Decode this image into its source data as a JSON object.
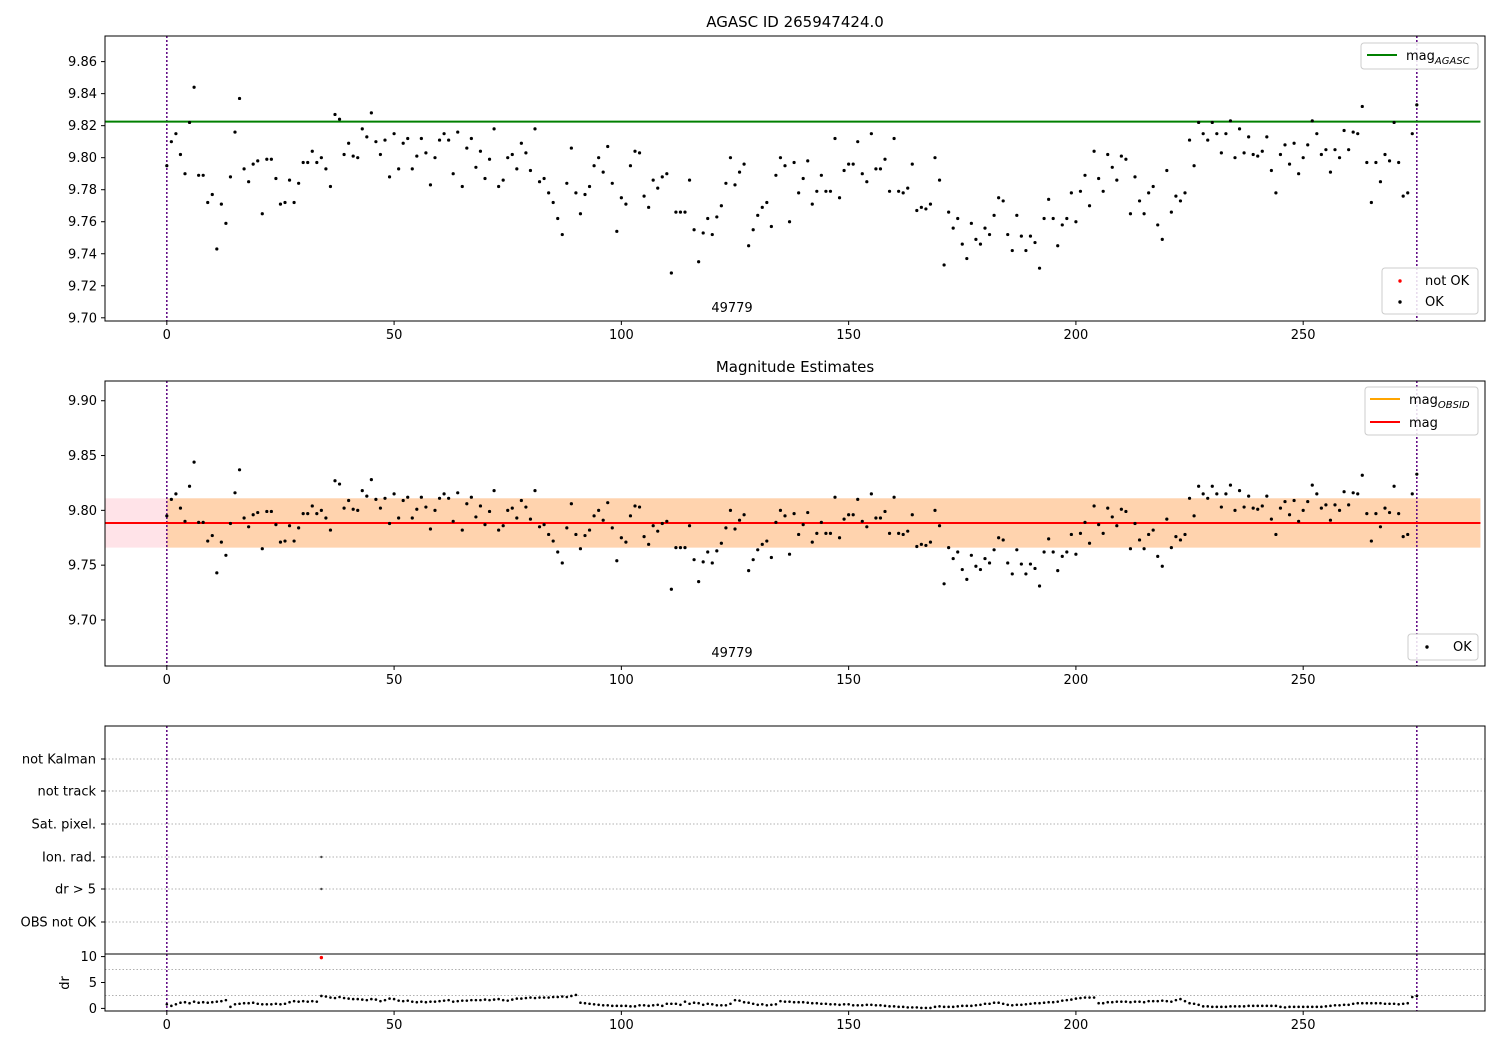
{
  "chart_data": [
    {
      "type": "scatter",
      "title": "AGASC ID 265947424.0",
      "ylim": [
        9.698,
        9.876
      ],
      "xlim": [
        -13.6,
        290
      ],
      "x_ticks": [
        0,
        50,
        100,
        150,
        200,
        250,
        300
      ],
      "y_ticks": [
        9.7,
        9.72,
        9.74,
        9.76,
        9.78,
        9.8,
        9.82,
        9.84,
        9.86
      ],
      "hline": {
        "label": "mag",
        "label_sub": "AGASC",
        "value": 9.8225,
        "color": "#008000",
        "x_range": [
          -13.6,
          289
        ]
      },
      "obs_lines": [
        0,
        275
      ],
      "annotation": {
        "text": "49779",
        "x": 137
      },
      "legends": [
        {
          "position": "top-right",
          "entries": [
            {
              "label": "mag",
              "label_sub": "AGASC",
              "kind": "line",
              "color": "#008000"
            }
          ]
        },
        {
          "position": "bottom-right",
          "entries": [
            {
              "label": "not OK",
              "kind": "point",
              "color": "#ff0000"
            },
            {
              "label": "OK",
              "kind": "point",
              "color": "#000000"
            }
          ]
        }
      ],
      "series": [
        {
          "name": "OK",
          "ref": "mags"
        }
      ]
    },
    {
      "type": "scatter",
      "title": "Magnitude Estimates",
      "ylim": [
        9.658,
        9.918
      ],
      "xlim": [
        -13.6,
        290
      ],
      "x_ticks": [
        0,
        50,
        100,
        150,
        200,
        250,
        300
      ],
      "y_ticks": [
        9.7,
        9.75,
        9.8,
        9.85,
        9.9
      ],
      "hline": {
        "label": "mag",
        "value": 9.7885,
        "color": "#ff0000",
        "x_range": [
          -13.6,
          289
        ]
      },
      "bands": [
        {
          "y": [
            9.766,
            9.811
          ],
          "x": [
            -13.6,
            289
          ],
          "color": "#ffc0cb",
          "opacity": 0.45
        },
        {
          "y": [
            9.766,
            9.811
          ],
          "x": [
            0,
            289
          ],
          "color": "#ffa500",
          "opacity": 0.25
        }
      ],
      "obs_lines": [
        0,
        275
      ],
      "annotation": {
        "text": "49779",
        "x": 137
      },
      "legends": [
        {
          "position": "top-right",
          "entries": [
            {
              "label": "mag",
              "label_sub": "OBSID",
              "kind": "line",
              "color": "#ffa500"
            },
            {
              "label": "mag",
              "kind": "line",
              "color": "#ff0000"
            }
          ]
        },
        {
          "position": "bottom-right",
          "entries": [
            {
              "label": "OK",
              "kind": "point",
              "color": "#000000"
            }
          ]
        }
      ],
      "series": [
        {
          "name": "OK",
          "ref": "mags"
        }
      ]
    },
    {
      "type": "scatter",
      "xlim": [
        -13.6,
        290
      ],
      "x_ticks": [
        0,
        50,
        100,
        150,
        200,
        250,
        300
      ],
      "flag_categories": [
        "not Kalman",
        "not track",
        "Sat. pixel.",
        "Ion. rad.",
        "dr > 5",
        "OBS not OK"
      ],
      "flag_points": [
        {
          "category": "Ion. rad.",
          "x": 34
        },
        {
          "category": "dr > 5",
          "x": 34
        }
      ],
      "obs_lines": [
        0,
        275
      ]
    },
    {
      "type": "scatter",
      "ylabel": "dr",
      "ylim": [
        -0.5,
        10.5
      ],
      "y_ticks": [
        0,
        5,
        10
      ],
      "xlim": [
        -13.6,
        290
      ],
      "x_ticks": [
        0,
        50,
        100,
        150,
        200,
        250,
        300
      ],
      "obs_lines": [
        0,
        275
      ],
      "flagged_points": [
        {
          "x": 34,
          "y": 9.8
        }
      ],
      "series": [
        {
          "name": "dr",
          "ref": "dr"
        }
      ]
    }
  ],
  "mags": [
    9.795,
    9.81,
    9.815,
    9.802,
    9.79,
    9.822,
    9.844,
    9.789,
    9.789,
    9.772,
    9.777,
    9.743,
    9.771,
    9.759,
    9.788,
    9.816,
    9.837,
    9.793,
    9.785,
    9.796,
    9.798,
    9.765,
    9.799,
    9.799,
    9.787,
    9.771,
    9.772,
    9.786,
    9.772,
    9.784,
    9.797,
    9.797,
    9.804,
    9.797,
    9.8,
    9.793,
    9.782,
    9.827,
    9.824,
    9.802,
    9.809,
    9.801,
    9.8,
    9.818,
    9.813,
    9.828,
    9.81,
    9.802,
    9.811,
    9.788,
    9.815,
    9.793,
    9.809,
    9.812,
    9.793,
    9.801,
    9.812,
    9.803,
    9.783,
    9.8,
    9.811,
    9.815,
    9.811,
    9.79,
    9.816,
    9.782,
    9.806,
    9.812,
    9.794,
    9.804,
    9.787,
    9.799,
    9.818,
    9.782,
    9.786,
    9.8,
    9.802,
    9.793,
    9.809,
    9.803,
    9.792,
    9.818,
    9.785,
    9.787,
    9.778,
    9.772,
    9.762,
    9.752,
    9.784,
    9.806,
    9.778,
    9.765,
    9.777,
    9.782,
    9.795,
    9.8,
    9.791,
    9.807,
    9.784,
    9.754,
    9.775,
    9.771,
    9.795,
    9.804,
    9.803,
    9.776,
    9.769,
    9.786,
    9.781,
    9.788,
    9.79,
    9.728,
    9.766,
    9.766,
    9.766,
    9.786,
    9.755,
    9.735,
    9.753,
    9.762,
    9.752,
    9.763,
    9.77,
    9.784,
    9.8,
    9.783,
    9.791,
    9.796,
    9.745,
    9.755,
    9.764,
    9.769,
    9.772,
    9.757,
    9.789,
    9.8,
    9.795,
    9.76,
    9.797,
    9.778,
    9.787,
    9.798,
    9.771,
    9.779,
    9.789,
    9.779,
    9.779,
    9.812,
    9.775,
    9.792,
    9.796,
    9.796,
    9.81,
    9.79,
    9.785,
    9.815,
    9.793,
    9.793,
    9.799,
    9.779,
    9.812,
    9.779,
    9.778,
    9.781,
    9.796,
    9.767,
    9.769,
    9.768,
    9.771,
    9.8,
    9.786,
    9.733,
    9.766,
    9.756,
    9.762,
    9.746,
    9.737,
    9.759,
    9.749,
    9.746,
    9.756,
    9.752,
    9.764,
    9.775,
    9.773,
    9.752,
    9.742,
    9.764,
    9.751,
    9.742,
    9.751,
    9.747,
    9.731,
    9.762,
    9.774,
    9.762,
    9.745,
    9.758,
    9.762,
    9.778,
    9.76,
    9.779,
    9.789,
    9.77,
    9.804,
    9.787,
    9.779,
    9.802,
    9.794,
    9.786,
    9.801,
    9.799,
    9.765,
    9.788,
    9.773,
    9.765,
    9.778,
    9.782,
    9.758,
    9.749,
    9.792,
    9.766,
    9.776,
    9.773,
    9.778,
    9.811,
    9.795,
    9.822,
    9.815,
    9.811,
    9.822,
    9.815,
    9.803,
    9.815,
    9.823,
    9.8,
    9.818,
    9.803,
    9.813,
    9.802,
    9.801,
    9.804,
    9.813,
    9.792,
    9.778,
    9.802,
    9.808,
    9.796,
    9.809,
    9.79,
    9.8,
    9.808,
    9.823,
    9.815,
    9.802,
    9.805,
    9.791,
    9.805,
    9.8,
    9.817,
    9.805,
    9.816,
    9.815,
    9.832,
    9.797,
    9.772,
    9.797,
    9.785,
    9.802,
    9.798,
    9.822,
    9.797,
    9.776,
    9.778,
    9.815,
    9.833
  ],
  "dr": [
    0.8,
    0.5,
    0.8,
    1.1,
    1.2,
    1.0,
    1.3,
    1.1,
    1.2,
    1.1,
    1.2,
    1.3,
    1.4,
    1.6,
    0.3,
    0.8,
    0.9,
    1.0,
    1.0,
    1.1,
    0.9,
    0.8,
    0.8,
    0.8,
    0.9,
    0.8,
    0.9,
    1.2,
    1.4,
    1.3,
    1.4,
    1.3,
    1.4,
    1.3,
    2.4,
    2.3,
    2.1,
    2.0,
    2.2,
    2.0,
    1.9,
    1.8,
    1.8,
    1.7,
    1.6,
    1.8,
    1.7,
    1.4,
    1.6,
    1.9,
    1.8,
    1.5,
    1.4,
    1.5,
    1.3,
    1.2,
    1.3,
    1.2,
    1.3,
    1.3,
    1.4,
    1.5,
    1.6,
    1.3,
    1.4,
    1.5,
    1.5,
    1.6,
    1.6,
    1.6,
    1.7,
    1.6,
    1.7,
    1.8,
    1.6,
    1.5,
    1.7,
    1.9,
    1.9,
    2.0,
    2.1,
    2.0,
    2.1,
    2.1,
    2.1,
    2.2,
    2.2,
    2.3,
    2.2,
    2.4,
    2.6,
    1.1,
    1.0,
    0.9,
    0.8,
    0.7,
    0.6,
    0.6,
    0.5,
    0.5,
    0.5,
    0.5,
    0.4,
    0.4,
    0.6,
    0.6,
    0.5,
    0.6,
    0.7,
    0.5,
    0.9,
    0.9,
    0.9,
    0.7,
    1.3,
    0.9,
    1.1,
    1.0,
    0.7,
    0.9,
    0.8,
    0.6,
    0.6,
    0.6,
    0.9,
    1.6,
    1.5,
    1.2,
    1.1,
    0.9,
    0.7,
    0.8,
    0.6,
    0.7,
    0.8,
    1.4,
    1.3,
    1.3,
    1.2,
    1.2,
    1.2,
    1.1,
    1.0,
    1.0,
    0.9,
    0.9,
    0.8,
    0.8,
    0.7,
    0.8,
    0.8,
    0.6,
    0.6,
    0.6,
    0.7,
    0.7,
    0.6,
    0.6,
    0.5,
    0.4,
    0.4,
    0.3,
    0.3,
    0.2,
    0.2,
    0.2,
    0.1,
    0.1,
    0.1,
    0.3,
    0.4,
    0.3,
    0.3,
    0.3,
    0.4,
    0.5,
    0.5,
    0.5,
    0.6,
    0.7,
    0.9,
    0.9,
    1.1,
    1.1,
    0.9,
    0.7,
    0.6,
    0.7,
    0.7,
    0.8,
    0.9,
    1.0,
    1.0,
    1.1,
    1.2,
    1.2,
    1.3,
    1.5,
    1.6,
    1.7,
    1.9,
    2.0,
    2.1,
    2.1,
    2.1,
    1.0,
    1.0,
    1.2,
    1.2,
    1.3,
    1.3,
    1.3,
    1.2,
    1.3,
    1.3,
    1.2,
    1.4,
    1.4,
    1.4,
    1.5,
    1.4,
    1.3,
    1.6,
    1.8,
    1.4,
    1.0,
    0.9,
    0.7,
    0.4,
    0.4,
    0.3,
    0.3,
    0.3,
    0.3,
    0.4,
    0.4,
    0.4,
    0.4,
    0.5,
    0.5,
    0.5,
    0.5,
    0.5,
    0.5,
    0.5,
    0.3,
    0.2,
    0.3,
    0.3,
    0.3,
    0.3,
    0.3,
    0.3,
    0.3,
    0.3,
    0.4,
    0.5,
    0.6,
    0.6,
    0.7,
    0.7,
    0.9,
    1.0,
    1.0,
    1.0,
    1.0,
    1.0,
    1.0,
    0.9,
    0.9,
    0.9,
    0.8,
    0.9,
    1.0,
    2.2,
    2.4
  ]
}
